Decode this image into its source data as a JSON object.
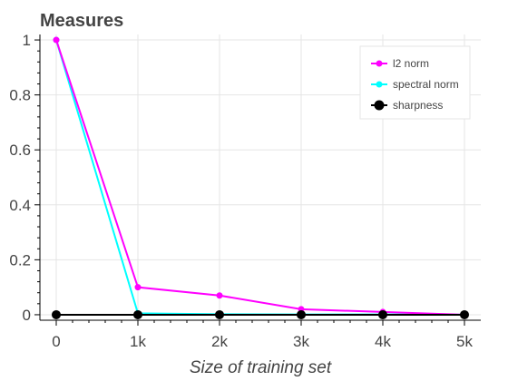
{
  "chart_data": {
    "type": "line",
    "title": "Measures",
    "xlabel": "Size of training set",
    "ylabel": "",
    "x": [
      0,
      1000,
      2000,
      3000,
      4000,
      5000
    ],
    "x_tick_values": [
      0,
      1000,
      2000,
      3000,
      4000,
      5000
    ],
    "x_tick_labels": [
      "0",
      "1k",
      "2k",
      "3k",
      "4k",
      "5k"
    ],
    "y_tick_values": [
      0,
      0.2,
      0.4,
      0.6,
      0.8,
      1
    ],
    "y_tick_labels": [
      "0",
      "0.2",
      "0.4",
      "0.6",
      "0.8",
      "1"
    ],
    "xlim": [
      -200,
      5200
    ],
    "ylim": [
      -0.02,
      1.02
    ],
    "grid": true,
    "legend_position": "top-right",
    "series": [
      {
        "name": "l2 norm",
        "color": "#ff00ff",
        "marker": "small-circle",
        "values": [
          1.0,
          0.1,
          0.07,
          0.02,
          0.01,
          0.0
        ]
      },
      {
        "name": "spectral norm",
        "color": "#00ffff",
        "marker": "small-circle",
        "values": [
          1.0,
          0.005,
          0.002,
          0.001,
          0.001,
          0.0
        ]
      },
      {
        "name": "sharpness",
        "color": "#000000",
        "marker": "large-circle",
        "values": [
          0.0,
          0.0,
          0.0,
          0.0,
          0.0,
          0.0
        ]
      }
    ]
  }
}
